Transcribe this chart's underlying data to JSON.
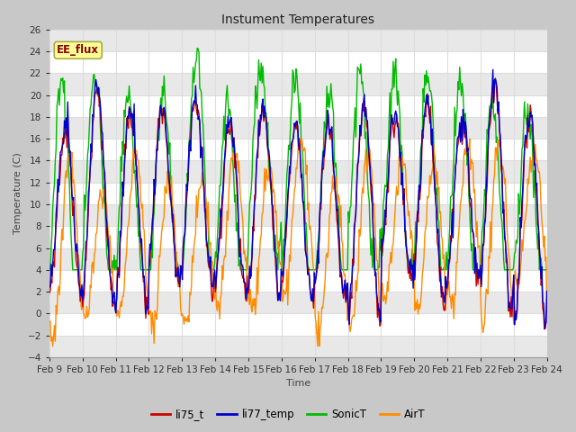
{
  "title": "Instument Temperatures",
  "xlabel": "Time",
  "ylabel": "Temperature (C)",
  "ylim": [
    -4,
    26
  ],
  "yticks": [
    -4,
    -2,
    0,
    2,
    4,
    6,
    8,
    10,
    12,
    14,
    16,
    18,
    20,
    22,
    24,
    26
  ],
  "xtick_labels": [
    "Feb 9",
    "Feb 10",
    "Feb 11",
    "Feb 12",
    "Feb 13",
    "Feb 14",
    "Feb 15",
    "Feb 16",
    "Feb 17",
    "Feb 18",
    "Feb 19",
    "Feb 20",
    "Feb 21",
    "Feb 22",
    "Feb 23",
    "Feb 24"
  ],
  "annotation_text": "EE_flux",
  "annotation_color": "#8B0000",
  "annotation_bg": "#FFFF99",
  "fig_bg": "#C8C8C8",
  "plot_bg": "#FFFFFF",
  "grid_color": "#DDDDDD",
  "alt_band_color": "#E8E8E8",
  "colors": {
    "li75_t": "#CC0000",
    "li77_temp": "#0000CC",
    "SonicT": "#00BB00",
    "AirT": "#FF8C00"
  },
  "legend_labels": [
    "li75_t",
    "li77_temp",
    "SonicT",
    "AirT"
  ]
}
